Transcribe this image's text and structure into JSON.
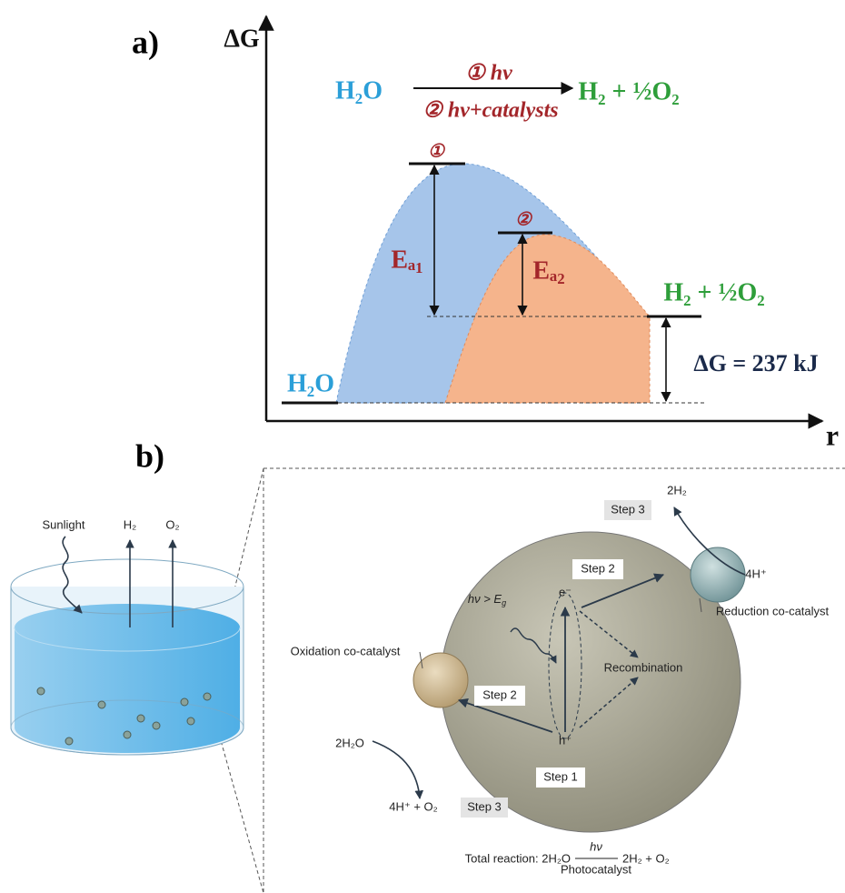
{
  "panel_a": {
    "label": "a)",
    "y_axis": "ΔG",
    "x_axis": "r",
    "reaction": {
      "reactant": "H₂O",
      "condition_1": "① hν",
      "condition_2": "② hν+catalysts",
      "product": "H₂ + ½O₂"
    },
    "peak_1": "①",
    "peak_2": "②",
    "ea1": "Eₐ₁",
    "ea2": "Eₐ₂",
    "reactant_level": "H₂O",
    "product_level": "H₂ + ½O₂",
    "delta_g": "ΔG = 237 kJ"
  },
  "panel_b": {
    "label": "b)",
    "sunlight": "Sunlight",
    "h2_out": "H₂",
    "o2_out": "O₂",
    "step3_top": "Step 3",
    "h2_product": "2H₂",
    "protons_in": "4H⁺",
    "step2_top": "Step 2",
    "reduction": "Reduction co-catalyst",
    "excitation": {
      "text": "hν > E",
      "sub": "g"
    },
    "electron": "e⁻",
    "hole": "h⁺",
    "recombination": "Recombination",
    "oxidation": "Oxidation co-catalyst",
    "step2_bottom": "Step 2",
    "water_in": "2H₂O",
    "step1": "Step 1",
    "oxidation_products": "4H⁺ + O₂",
    "step3_bottom": "Step 3",
    "total": {
      "prefix": "Total reaction: 2H₂O",
      "above": "hν",
      "below": "Photocatalyst",
      "products": "2H₂ + O₂"
    }
  }
}
